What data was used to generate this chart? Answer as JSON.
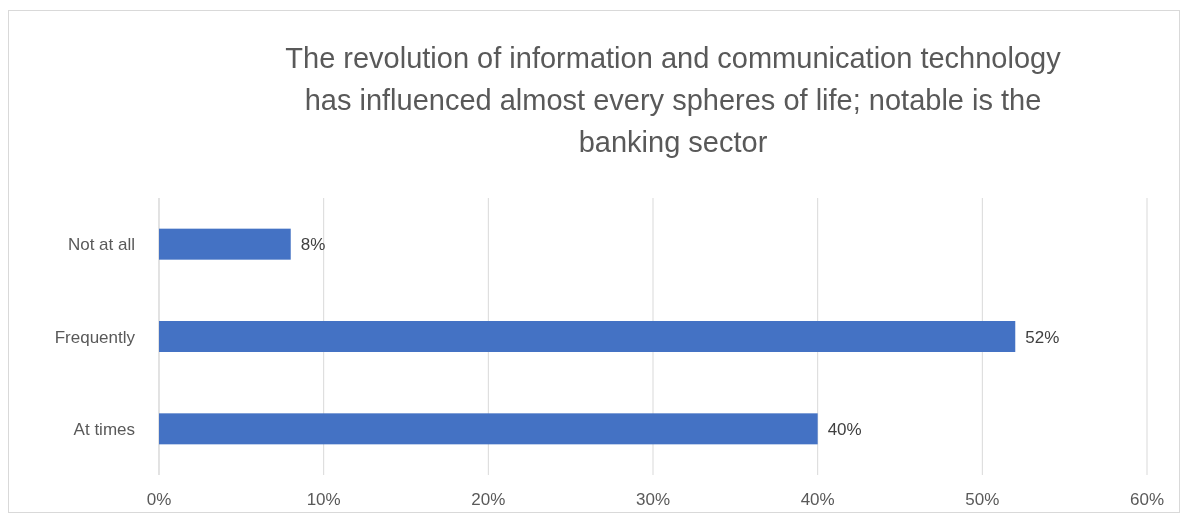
{
  "chart_data": {
    "type": "bar",
    "orientation": "horizontal",
    "title": "The revolution of information and communication technology has influenced almost every spheres of life; notable is the banking sector",
    "categories": [
      "Not at all",
      "Frequently",
      "At times"
    ],
    "values": [
      8,
      52,
      40
    ],
    "value_labels": [
      "8%",
      "52%",
      "40%"
    ],
    "color": "#4472c4",
    "xlim": [
      0,
      60
    ],
    "xticks": [
      {
        "value": 0,
        "label": "0%"
      },
      {
        "value": 10,
        "label": "10%"
      },
      {
        "value": 20,
        "label": "20%"
      },
      {
        "value": 30,
        "label": "30%"
      },
      {
        "value": 40,
        "label": "40%"
      },
      {
        "value": 50,
        "label": "50%"
      },
      {
        "value": 60,
        "label": "60%"
      }
    ],
    "grid": "x"
  }
}
